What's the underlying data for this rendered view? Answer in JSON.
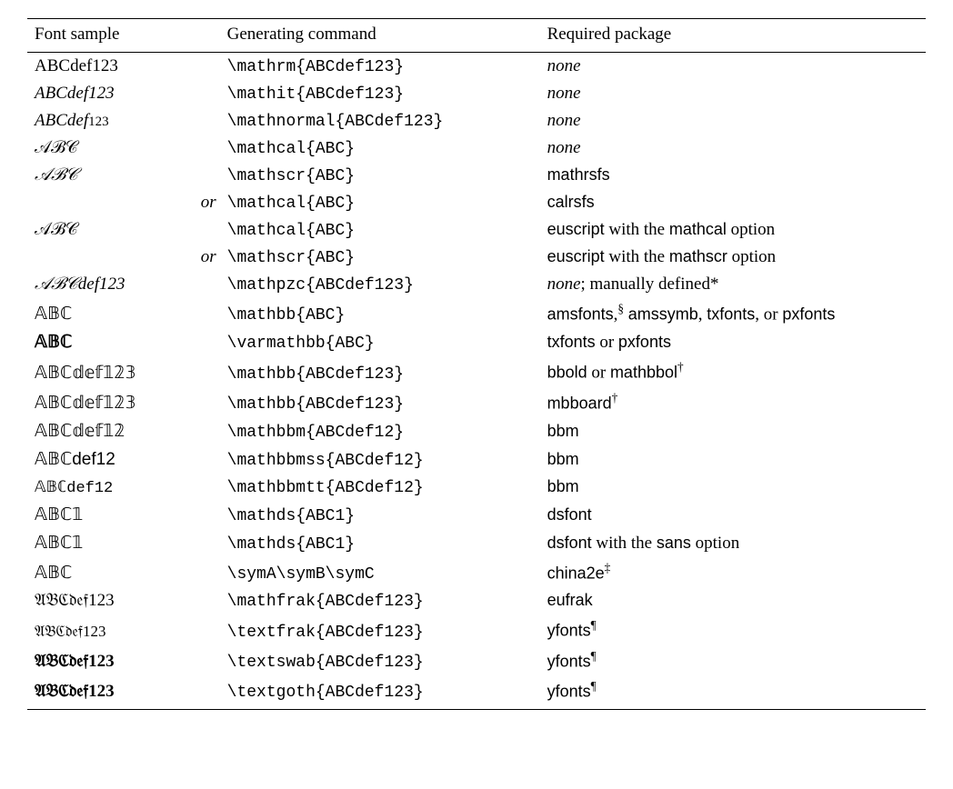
{
  "table": {
    "headers": {
      "sample": "Font sample",
      "command": "Generating command",
      "package": "Required package"
    },
    "none_label": "none",
    "or_label": "or",
    "rows": [
      {
        "sample": "ABCdef123",
        "sample_style": "font-family:'Times New Roman',serif;",
        "command": "\\mathrm{ABCdef123}",
        "package_html": "<span class='italic'>none</span>"
      },
      {
        "sample": "ABCdef123",
        "sample_style": "font-family:'Times New Roman',serif;font-style:italic;",
        "command": "\\mathit{ABCdef123}",
        "package_html": "<span class='italic'>none</span>"
      },
      {
        "sample": "ABCdef",
        "sample_extra": "123",
        "sample_style": "font-family:'Times New Roman',serif;font-style:italic;",
        "sample_extra_style": "font-size:15px;font-style:normal;",
        "command": "\\mathnormal{ABCdef123}",
        "package_html": "<span class='italic'>none</span>"
      },
      {
        "sample": "𝒜ℬ𝒞",
        "sample_style": "font-family:'Times New Roman',serif;",
        "command": "\\mathcal{ABC}",
        "package_html": "<span class='italic'>none</span>"
      },
      {
        "sample": "𝒜ℬ𝒞",
        "sample_style": "font-family:'Brush Script MT',cursive;font-style:italic;",
        "command": "\\mathscr{ABC}",
        "package_html": "<span class='sans'>mathrsfs</span>"
      },
      {
        "sample_or": true,
        "command": "\\mathcal{ABC}",
        "package_html": "<span class='sans'>calrsfs</span>"
      },
      {
        "sample": "𝒜ℬ𝒞",
        "sample_style": "font-family:'Times New Roman',serif;",
        "command": "\\mathcal{ABC}",
        "package_html": "<span class='sans'>euscript</span> with the <span class='sans'>mathcal</span> option"
      },
      {
        "sample_or": true,
        "command": "\\mathscr{ABC}",
        "package_html": "<span class='sans'>euscript</span> with the <span class='sans'>mathscr</span> option"
      },
      {
        "sample": "𝒜ℬ𝒞def123",
        "sample_style": "font-family:'Times New Roman',serif;font-style:italic;",
        "command": "\\mathpzc{ABCdef123}",
        "package_html": "<span class='italic'>none</span>; manually defined*"
      },
      {
        "sample": "𝔸𝔹ℂ",
        "sample_style": "font-family:'Times New Roman',serif;",
        "command": "\\mathbb{ABC}",
        "package_html": "<span class='sans'>amsfonts</span>,<sup>§</sup> <span class='sans'>amssymb</span>, <span class='sans'>txfonts</span>, or <span class='sans'>pxfonts</span>"
      },
      {
        "sample": "𝔸𝔹ℂ",
        "sample_style": "font-family:'Times New Roman',serif;font-weight:bold;",
        "command": "\\varmathbb{ABC}",
        "package_html": "<span class='sans'>txfonts</span> or <span class='sans'>pxfonts</span>"
      },
      {
        "sample": "𝔸𝔹ℂ𝕕𝕖𝕗𝟙𝟚𝟛",
        "sample_style": "font-family:'Times New Roman',serif;",
        "command": "\\mathbb{ABCdef123}",
        "package_html": "<span class='sans'>bbold</span> or <span class='sans'>mathbbol</span><sup>†</sup>"
      },
      {
        "sample": "𝔸𝔹ℂ𝕕𝕖𝕗𝟙𝟚𝟛",
        "sample_style": "font-family:'Times New Roman',serif;",
        "command": "\\mathbb{ABCdef123}",
        "package_html": "<span class='sans'>mbboard</span><sup>†</sup>"
      },
      {
        "sample": "𝔸𝔹ℂ𝕕𝕖𝕗𝟙𝟚",
        "sample_style": "font-family:'Times New Roman',serif;",
        "command": "\\mathbbm{ABCdef12}",
        "package_html": "<span class='sans'>bbm</span>"
      },
      {
        "sample": "𝔸𝔹ℂdef12",
        "sample_style": "font-family:Arial,sans-serif;",
        "command": "\\mathbbmss{ABCdef12}",
        "package_html": "<span class='sans'>bbm</span>"
      },
      {
        "sample": "𝔸𝔹ℂdef12",
        "sample_style": "font-family:'Courier New',monospace;font-size:17px;",
        "command": "\\mathbbmtt{ABCdef12}",
        "package_html": "<span class='sans'>bbm</span>"
      },
      {
        "sample": "𝔸𝔹ℂ𝟙",
        "sample_style": "font-family:'Times New Roman',serif;",
        "command": "\\mathds{ABC1}",
        "package_html": "<span class='sans'>dsfont</span>"
      },
      {
        "sample": "𝔸𝔹ℂ𝟙",
        "sample_style": "font-family:Arial,sans-serif;",
        "command": "\\mathds{ABC1}",
        "package_html": "<span class='sans'>dsfont</span> with the <span class='sans'>sans</span> option"
      },
      {
        "sample": "𝔸𝔹ℂ",
        "sample_style": "font-family:'Times New Roman',serif;",
        "command": "\\symA\\symB\\symC",
        "package_html": "<span class='sans'>china2e</span><sup>‡</sup>"
      },
      {
        "sample": "𝔄𝔅ℭ𝔡𝔢𝔣123",
        "sample_style": "font-family:'Times New Roman',serif;",
        "command": "\\mathfrak{ABCdef123}",
        "package_html": "<span class='sans'>eufrak</span>"
      },
      {
        "sample": "𝔄𝔅ℭ𝔡𝔢𝔣123",
        "sample_style": "font-family:'Times New Roman',serif;font-size:17px;",
        "command": "\\textfrak{ABCdef123}",
        "package_html": "<span class='sans'>yfonts</span><sup>¶</sup>"
      },
      {
        "sample": "𝔄𝔅ℭ𝔡𝔢𝔣123",
        "sample_style": "font-family:'Times New Roman',serif;font-weight:bold;",
        "command": "\\textswab{ABCdef123}",
        "package_html": "<span class='sans'>yfonts</span><sup>¶</sup>"
      },
      {
        "sample": "𝔄𝔅ℭ𝔡𝔢𝔣123",
        "sample_style": "font-family:'Times New Roman',serif;font-weight:bold;",
        "command": "\\textgoth{ABCdef123}",
        "package_html": "<span class='sans'>yfonts</span><sup>¶</sup>"
      }
    ]
  },
  "colors": {
    "text": "#000000",
    "background": "#ffffff",
    "rule": "#000000"
  }
}
